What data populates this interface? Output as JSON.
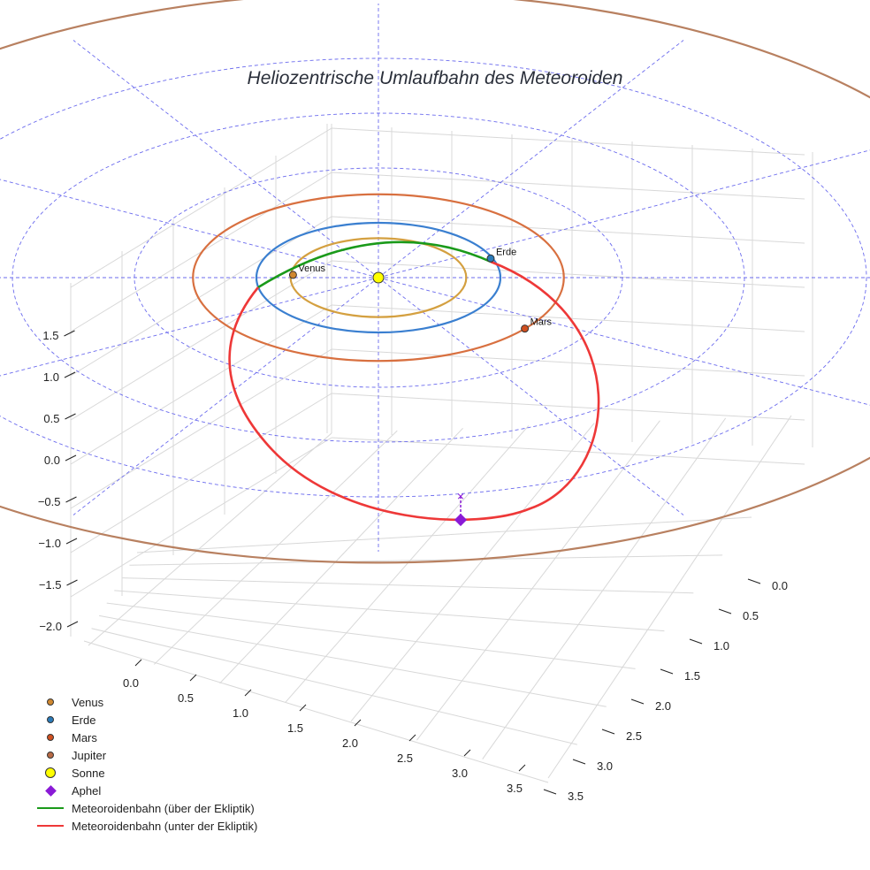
{
  "chart_data": {
    "type": "3d-line",
    "title": "Heliozentrische Umlaufbahn des Meteoroiden",
    "axes": {
      "x_ticks": [
        "0.0",
        "0.5",
        "1.0",
        "1.5",
        "2.0",
        "2.5",
        "3.0",
        "3.5"
      ],
      "y_ticks": [
        "0.0",
        "0.5",
        "1.0",
        "1.5",
        "2.0",
        "2.5",
        "3.0",
        "3.5"
      ],
      "z_ticks": [
        "−2.0",
        "−1.5",
        "−1.0",
        "−0.5",
        "0.0",
        "0.5",
        "1.0",
        "1.5"
      ],
      "xlim": [
        0.0,
        3.5
      ],
      "ylim": [
        0.0,
        3.5
      ],
      "zlim": [
        -2.0,
        1.5
      ],
      "grid": true
    },
    "planet_orbits_au": [
      {
        "name": "Venus",
        "a": 0.72,
        "color": "#d4a040"
      },
      {
        "name": "Erde",
        "a": 1.0,
        "color": "#3a7fd0"
      },
      {
        "name": "Mars",
        "a": 1.52,
        "color": "#d87040"
      },
      {
        "name": "Jupiter",
        "a": 5.2,
        "color": "#b88060"
      }
    ],
    "ecliptic_reference_circles_au": [
      1,
      2,
      3,
      4
    ],
    "planets": [
      {
        "name": "Venus",
        "label": "Venus",
        "x": -0.7,
        "y": 0.05,
        "color": "#d08830"
      },
      {
        "name": "Erde",
        "label": "Erde",
        "x": 0.92,
        "y": 0.35,
        "color": "#2a7ab8"
      },
      {
        "name": "Mars",
        "label": "Mars",
        "x": 1.2,
        "y": -0.93,
        "color": "#d05020"
      }
    ],
    "sun": {
      "name": "Sonne",
      "x": 0,
      "y": 0,
      "color": "#ffff00"
    },
    "meteoroid_orbit": {
      "above_ecliptic": {
        "name": "Meteoroidenbahn (über der Ekliptik)",
        "color": "#1a9a1a"
      },
      "below_ecliptic": {
        "name": "Meteoroidenbahn (unter der Ekliptik)",
        "color": "#ee3838"
      }
    },
    "aphel": {
      "name": "Aphel",
      "color": "#8a1ad6"
    },
    "legend_position": "bottom-left",
    "legend": [
      {
        "label": "Venus",
        "kind": "dot",
        "color": "#d08830"
      },
      {
        "label": "Erde",
        "kind": "dot",
        "color": "#2a7ab8"
      },
      {
        "label": "Mars",
        "kind": "dot",
        "color": "#d05020"
      },
      {
        "label": "Jupiter",
        "kind": "dot",
        "color": "#b86a45"
      },
      {
        "label": "Sonne",
        "kind": "sun",
        "color": "#ffff00"
      },
      {
        "label": "Aphel",
        "kind": "diamond",
        "color": "#8a1ad6"
      },
      {
        "label": "Meteoroidenbahn (über der Ekliptik)",
        "kind": "line",
        "color": "#1a9a1a"
      },
      {
        "label": "Meteoroidenbahn (unter der Ekliptik)",
        "kind": "line",
        "color": "#ee3838"
      }
    ]
  }
}
